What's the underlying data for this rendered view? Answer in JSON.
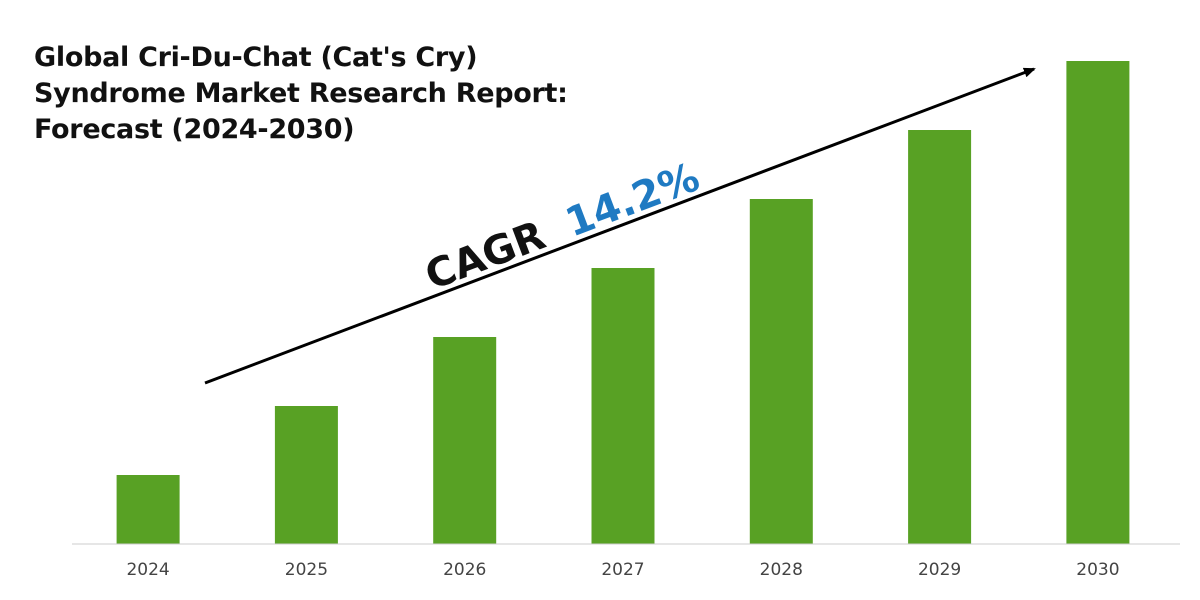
{
  "title_lines": [
    "Global Cri-Du-Chat (Cat's Cry)",
    "Syndrome Market Research Report:",
    "Forecast (2024-2030)"
  ],
  "cagr": {
    "label": "CAGR",
    "value": "14.2%"
  },
  "colors": {
    "bar": "#58a124",
    "cagr_value": "#1f7ac2",
    "text": "#111111",
    "axis": "#cccccc"
  },
  "chart_data": {
    "type": "bar",
    "title": "Global Cri-Du-Chat (Cat's Cry) Syndrome Market Research Report: Forecast (2024-2030)",
    "categories": [
      "2024",
      "2025",
      "2026",
      "2027",
      "2028",
      "2029",
      "2030"
    ],
    "values": [
      1,
      2,
      3,
      4,
      5,
      6,
      7
    ],
    "ylim": [
      0,
      7.3
    ],
    "xlabel": "",
    "ylabel": "",
    "grid": false,
    "legend": "none",
    "annotations": [
      "CAGR 14.2%"
    ]
  }
}
